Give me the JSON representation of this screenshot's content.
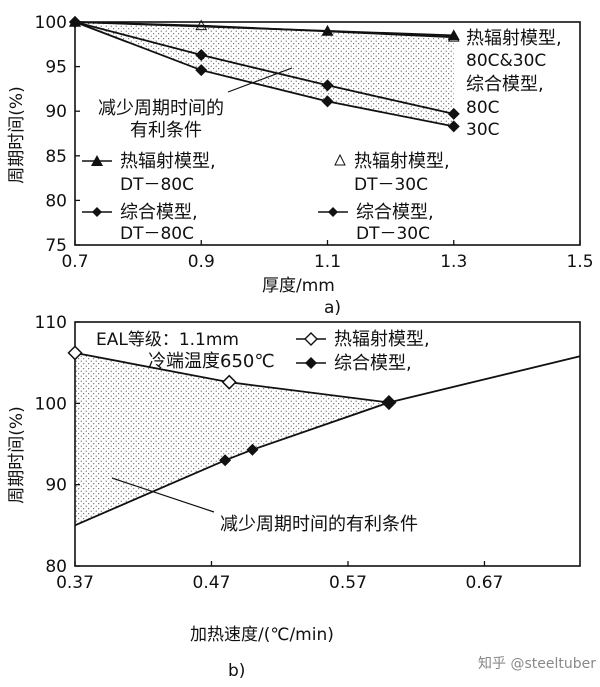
{
  "chart_data": [
    {
      "type": "line",
      "panel_label": "a)",
      "xlabel": "厚度/mm",
      "ylabel": "周期时间(%)",
      "xlim": [
        0.7,
        1.5
      ],
      "ylim": [
        75,
        100
      ],
      "x_ticks": [
        "0.7",
        "0.9",
        "1.1",
        "1.3",
        "1.5"
      ],
      "y_ticks": [
        "75",
        "80",
        "85",
        "90",
        "95",
        "100"
      ],
      "series": [
        {
          "marker": "triangle-filled",
          "x": [
            0.7,
            1.1,
            1.3
          ],
          "y": [
            100,
            99.0,
            98.5
          ]
        },
        {
          "marker": "triangle-open",
          "x": [
            0.7,
            0.9,
            1.3
          ],
          "y": [
            100,
            99.6,
            98.3
          ]
        },
        {
          "marker": "diamond-filled",
          "x": [
            0.7,
            0.9,
            1.1,
            1.3
          ],
          "y": [
            100,
            96.3,
            92.9,
            89.7
          ]
        },
        {
          "marker": "diamond-filled",
          "x": [
            0.7,
            0.9,
            1.1,
            1.3
          ],
          "y": [
            100,
            94.6,
            91.1,
            88.3
          ]
        }
      ],
      "annotations": {
        "right_heat_1": "热辐射模型,",
        "right_heat_2": "80C&30C",
        "right_comb_1": "综合模型,",
        "right_comb_2": "80C",
        "right_comb_3": "30C",
        "region_1": "减少周期时间的",
        "region_2": "有利条件"
      },
      "legend": [
        {
          "marker": "triangle-filled",
          "line1": "热辐射模型,",
          "line2": "DT－80C"
        },
        {
          "marker": "triangle-open",
          "line1": "热辐射模型,",
          "line2": "DT－30C"
        },
        {
          "marker": "diamond-filled",
          "line1": "综合模型,",
          "line2": "DT－80C"
        },
        {
          "marker": "diamond-filled",
          "line1": "综合模型,",
          "line2": "DT－30C"
        }
      ]
    },
    {
      "type": "line",
      "panel_label": "b)",
      "xlabel": "加热速度/(℃/min)",
      "ylabel": "周期时间(%)",
      "xlim": [
        0.37,
        0.74
      ],
      "ylim": [
        80,
        110
      ],
      "x_ticks": [
        "0.37",
        "0.47",
        "0.57",
        "0.67"
      ],
      "y_ticks": [
        "80",
        "90",
        "100",
        "110"
      ],
      "series": [
        {
          "name": "热辐射模型,",
          "marker": "diamond-open",
          "x": [
            0.37,
            0.483,
            0.6
          ],
          "y": [
            106.2,
            102.6,
            100.1
          ]
        },
        {
          "name": "综合模型,",
          "marker": "diamond-filled",
          "x": [
            0.37,
            0.48,
            0.5,
            0.6,
            0.74
          ],
          "y": [
            85,
            93,
            94.3,
            100.1,
            105.8
          ],
          "marker_points": [
            1,
            2,
            3
          ]
        }
      ],
      "annotations": {
        "eal": "EAL等级：1.1mm",
        "cold_end": "冷端温度650℃",
        "region": "减少周期时间的有利条件"
      }
    }
  ],
  "watermark": "知乎 @steeltuber"
}
